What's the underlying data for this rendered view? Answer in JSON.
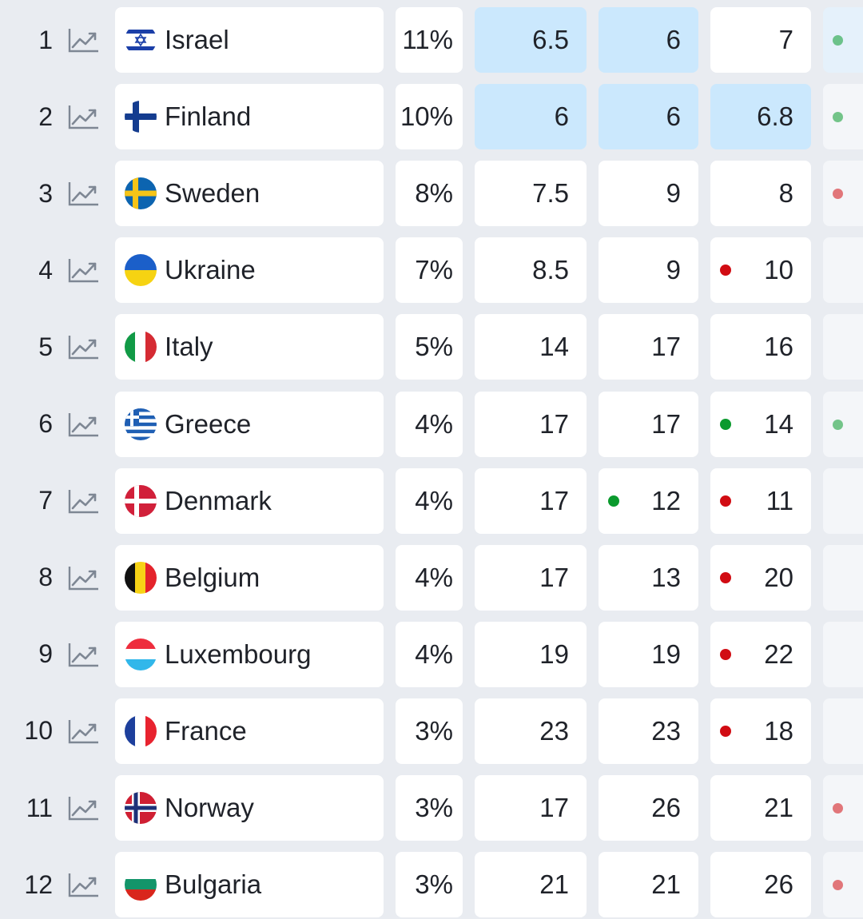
{
  "colors": {
    "background": "#e9ecf1",
    "cell": "#ffffff",
    "highlight": "#cbe8fd",
    "dot_green": "#0a9a2d",
    "dot_red": "#d10c13",
    "trend_icon": "#7e8794"
  },
  "rows": [
    {
      "rank": "1",
      "country": "Israel",
      "flag": "israel",
      "pct": "11%",
      "c1": "6.5",
      "c2": "6",
      "c3": "7",
      "c3_dot": null,
      "c2_dot": null,
      "c6_dot": "green",
      "hl": [
        false,
        true,
        true,
        false
      ],
      "c6_hl": true
    },
    {
      "rank": "2",
      "country": "Finland",
      "flag": "finland",
      "pct": "10%",
      "c1": "6",
      "c2": "6",
      "c3": "6.8",
      "c3_dot": null,
      "c2_dot": null,
      "c6_dot": "green",
      "hl": [
        false,
        true,
        true,
        true
      ],
      "c6_hl": false
    },
    {
      "rank": "3",
      "country": "Sweden",
      "flag": "sweden",
      "pct": "8%",
      "c1": "7.5",
      "c2": "9",
      "c3": "8",
      "c3_dot": null,
      "c2_dot": null,
      "c6_dot": "red",
      "hl": [
        false,
        false,
        false,
        false
      ],
      "c6_hl": false
    },
    {
      "rank": "4",
      "country": "Ukraine",
      "flag": "ukraine",
      "pct": "7%",
      "c1": "8.5",
      "c2": "9",
      "c3": "10",
      "c3_dot": "red",
      "c2_dot": null,
      "c6_dot": null,
      "hl": [
        false,
        false,
        false,
        false
      ],
      "c6_hl": false
    },
    {
      "rank": "5",
      "country": "Italy",
      "flag": "italy",
      "pct": "5%",
      "c1": "14",
      "c2": "17",
      "c3": "16",
      "c3_dot": null,
      "c2_dot": null,
      "c6_dot": null,
      "hl": [
        false,
        false,
        false,
        false
      ],
      "c6_hl": false
    },
    {
      "rank": "6",
      "country": "Greece",
      "flag": "greece",
      "pct": "4%",
      "c1": "17",
      "c2": "17",
      "c3": "14",
      "c3_dot": "green",
      "c2_dot": null,
      "c6_dot": "green",
      "hl": [
        false,
        false,
        false,
        false
      ],
      "c6_hl": false
    },
    {
      "rank": "7",
      "country": "Denmark",
      "flag": "denmark",
      "pct": "4%",
      "c1": "17",
      "c2": "12",
      "c3": "11",
      "c3_dot": "red",
      "c2_dot": "green",
      "c6_dot": null,
      "hl": [
        false,
        false,
        false,
        false
      ],
      "c6_hl": false
    },
    {
      "rank": "8",
      "country": "Belgium",
      "flag": "belgium",
      "pct": "4%",
      "c1": "17",
      "c2": "13",
      "c3": "20",
      "c3_dot": "red",
      "c2_dot": null,
      "c6_dot": null,
      "hl": [
        false,
        false,
        false,
        false
      ],
      "c6_hl": false
    },
    {
      "rank": "9",
      "country": "Luxembourg",
      "flag": "luxembourg",
      "pct": "4%",
      "c1": "19",
      "c2": "19",
      "c3": "22",
      "c3_dot": "red",
      "c2_dot": null,
      "c6_dot": null,
      "hl": [
        false,
        false,
        false,
        false
      ],
      "c6_hl": false
    },
    {
      "rank": "10",
      "country": "France",
      "flag": "france",
      "pct": "3%",
      "c1": "23",
      "c2": "23",
      "c3": "18",
      "c3_dot": "red",
      "c2_dot": null,
      "c6_dot": null,
      "hl": [
        false,
        false,
        false,
        false
      ],
      "c6_hl": false
    },
    {
      "rank": "11",
      "country": "Norway",
      "flag": "norway",
      "pct": "3%",
      "c1": "17",
      "c2": "26",
      "c3": "21",
      "c3_dot": null,
      "c2_dot": null,
      "c6_dot": "red",
      "hl": [
        false,
        false,
        false,
        false
      ],
      "c6_hl": false
    },
    {
      "rank": "12",
      "country": "Bulgaria",
      "flag": "bulgaria",
      "pct": "3%",
      "c1": "21",
      "c2": "21",
      "c3": "26",
      "c3_dot": null,
      "c2_dot": null,
      "c6_dot": "red",
      "hl": [
        false,
        false,
        false,
        false
      ],
      "c6_hl": false
    }
  ]
}
